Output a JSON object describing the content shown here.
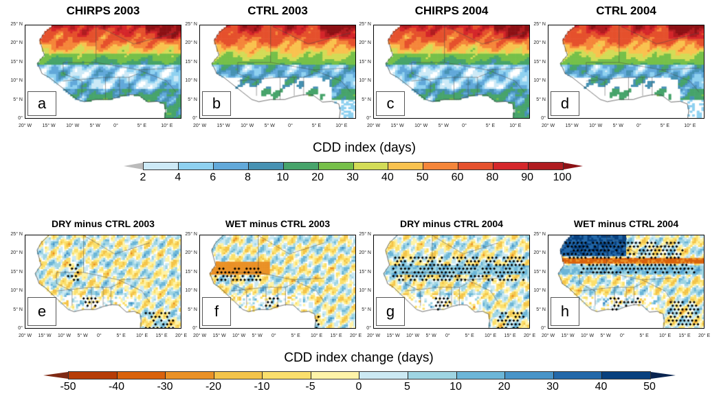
{
  "top_row": {
    "panels": [
      {
        "title": "CHIRPS 2003",
        "letter": "a",
        "kind": "chirps"
      },
      {
        "title": "CTRL 2003",
        "letter": "b",
        "kind": "ctrl"
      },
      {
        "title": "CHIRPS 2004",
        "letter": "c",
        "kind": "chirps"
      },
      {
        "title": "CTRL 2004",
        "letter": "d",
        "kind": "ctrl"
      }
    ],
    "lon_range": [
      -20,
      13
    ],
    "lon_ticks": [
      "20° W",
      "15° W",
      "10° W",
      "5° W",
      "0°",
      "5° E",
      "10° E"
    ],
    "lat_ticks": [
      "25° N",
      "20° N",
      "15° N",
      "10° N",
      "5° N",
      "0°"
    ],
    "colorbar": {
      "title": "CDD index (days)",
      "labels": [
        "2",
        "4",
        "6",
        "8",
        "10",
        "20",
        "30",
        "40",
        "50",
        "60",
        "80",
        "90",
        "100"
      ],
      "under_color": "#ffffff",
      "colors": [
        "#cdeaf7",
        "#8fd1f0",
        "#62a9da",
        "#4792b3",
        "#47a46b",
        "#76c04a",
        "#d3dc57",
        "#f9c24f",
        "#f5863a",
        "#e5512d",
        "#d5272b",
        "#b01c20"
      ],
      "over_color": "#8c1115"
    }
  },
  "bottom_row": {
    "panels": [
      {
        "title": "DRY minus CTRL 2003",
        "letter": "e",
        "kind": "dry03"
      },
      {
        "title": "WET minus CTRL 2003",
        "letter": "f",
        "kind": "wet03"
      },
      {
        "title": "DRY minus CTRL 2004",
        "letter": "g",
        "kind": "dry04"
      },
      {
        "title": "WET minus CTRL 2004",
        "letter": "h",
        "kind": "wet04"
      }
    ],
    "lon_range": [
      -20,
      20
    ],
    "lon_ticks": [
      "20° W",
      "15° W",
      "10° W",
      "5° W",
      "0°",
      "5° E",
      "10° E",
      "15° E",
      "20° E"
    ],
    "lat_ticks": [
      "25° N",
      "20° N",
      "15° N",
      "10° N",
      "5° N",
      "0°"
    ],
    "colorbar": {
      "title": "CDD index change (days)",
      "labels": [
        "-50",
        "-40",
        "-30",
        "-20",
        "-10",
        "-5",
        "0",
        "5",
        "10",
        "20",
        "30",
        "40",
        "50"
      ],
      "under_color": "#7f2a14",
      "colors": [
        "#b63c06",
        "#d9620c",
        "#ea9126",
        "#f4c44a",
        "#fbdf6c",
        "#fef3a8",
        "#cbe9f3",
        "#9fd5e3",
        "#6cb6d8",
        "#4894c8",
        "#2368a9",
        "#08407e"
      ],
      "over_color": "#0a2550"
    }
  }
}
